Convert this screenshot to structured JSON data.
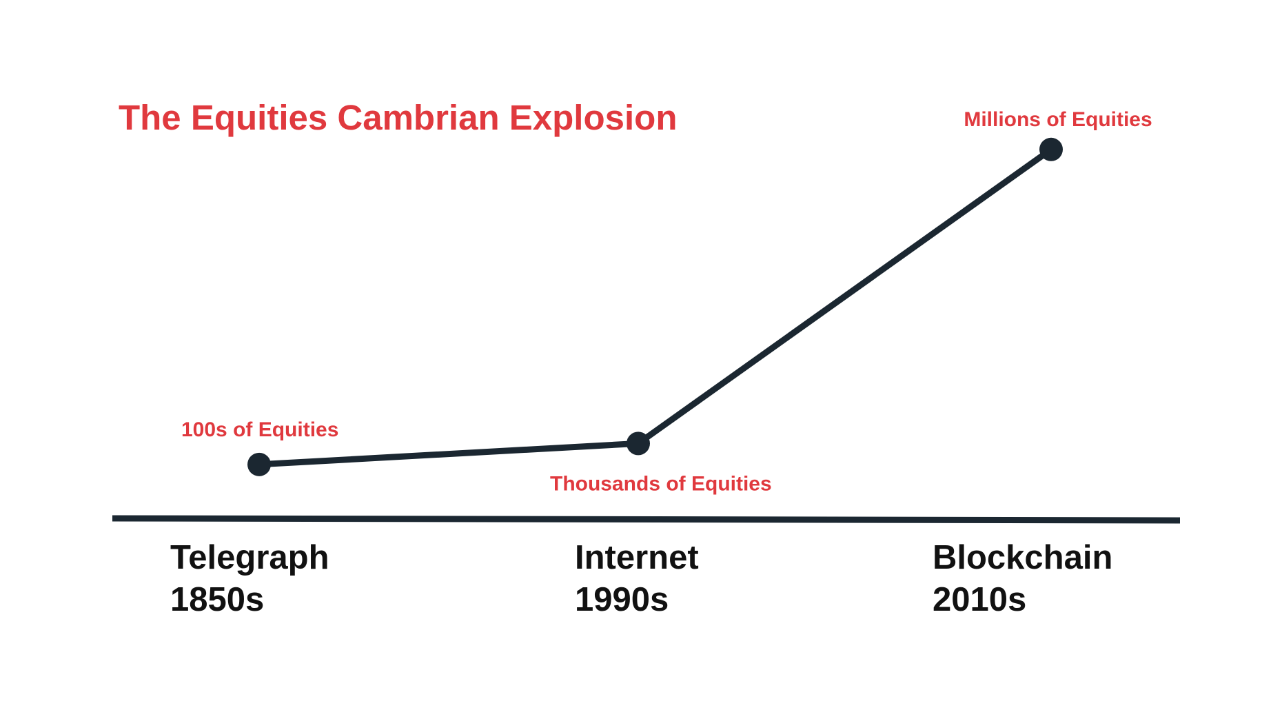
{
  "colors": {
    "accent": "#e0393e",
    "ink": "#1b2731",
    "tick_text": "#111111",
    "background": "#ffffff"
  },
  "chart_data": {
    "type": "line",
    "title": "The Equities Cambrian Explosion",
    "categories": [
      {
        "name": "Telegraph",
        "period": "1850s"
      },
      {
        "name": "Internet",
        "period": "1990s"
      },
      {
        "name": "Blockchain",
        "period": "2010s"
      }
    ],
    "series": [
      {
        "values": [
          1,
          1.4,
          7
        ],
        "point_labels": [
          "100s of Equities",
          "Thousands of Equities",
          "Millions of Equities"
        ]
      }
    ],
    "xlabel": "",
    "ylabel": "",
    "ylim": [
      0,
      8
    ],
    "grid": false,
    "legend": "none"
  }
}
